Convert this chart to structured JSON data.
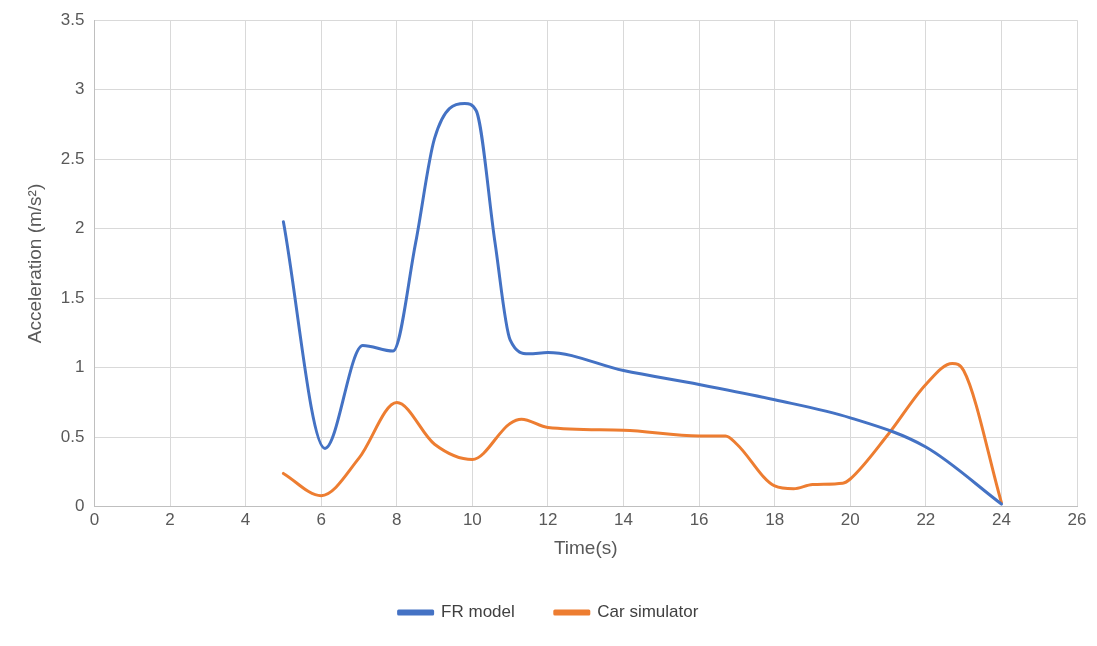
{
  "chart_data": {
    "type": "line",
    "xlabel": "Time(s)",
    "ylabel": "Acceleration (m/s²)",
    "xlim": [
      0,
      26
    ],
    "xticks": [
      0,
      2,
      4,
      6,
      8,
      10,
      12,
      14,
      16,
      18,
      20,
      22,
      24,
      26
    ],
    "ylim": [
      0,
      3.5
    ],
    "yticks": [
      0,
      0.5,
      1,
      1.5,
      2,
      2.5,
      3,
      3.5
    ],
    "grid": true,
    "legend": "bottom",
    "marker": "none",
    "line_style": "solid",
    "series": [
      {
        "name": "FR model",
        "color": "#4472c4",
        "x": [
          5,
          6.1,
          7.1,
          7.9,
          8.5,
          9,
          9.8,
          10.1,
          10.6,
          11,
          11.5,
          12,
          14,
          16,
          18,
          20,
          22,
          24
        ],
        "values": [
          2.05,
          0.42,
          1.16,
          1.12,
          1.9,
          2.65,
          2.9,
          2.85,
          1.9,
          1.2,
          1.1,
          1.11,
          0.98,
          0.88,
          0.77,
          0.64,
          0.43,
          0.02
        ]
      },
      {
        "name": "Car simulator",
        "color": "#ed7d31",
        "x": [
          5,
          6,
          7,
          8,
          9,
          10,
          11,
          11.3,
          12,
          14,
          16,
          16.7,
          17,
          18,
          18.5,
          19,
          19.8,
          20,
          21,
          22,
          22.7,
          23,
          24
        ],
        "values": [
          0.24,
          0.08,
          0.35,
          0.75,
          0.45,
          0.34,
          0.6,
          0.63,
          0.57,
          0.55,
          0.51,
          0.51,
          0.45,
          0.15,
          0.13,
          0.16,
          0.17,
          0.2,
          0.52,
          0.88,
          1.03,
          0.98,
          0.03
        ]
      }
    ]
  }
}
